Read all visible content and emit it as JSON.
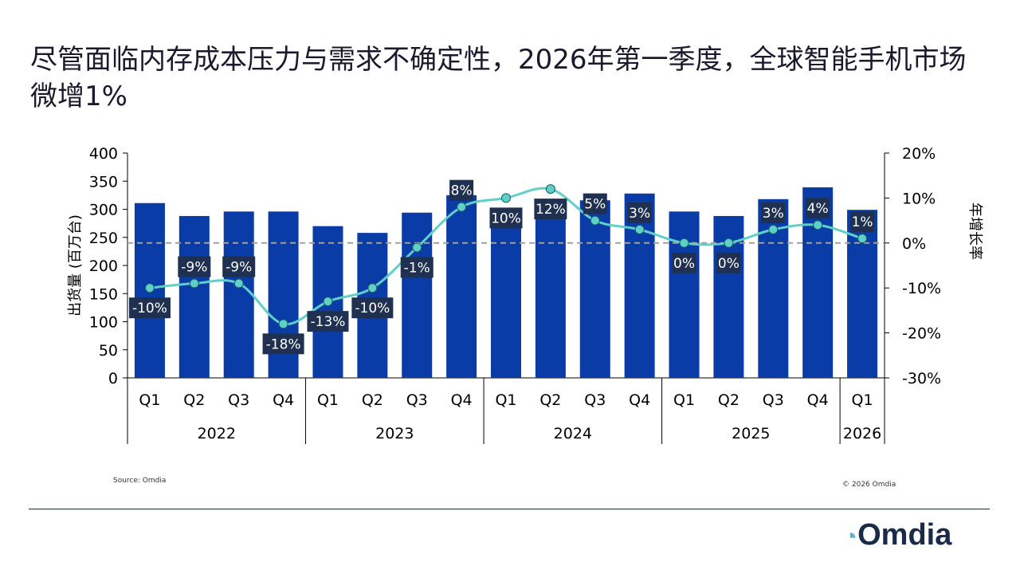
{
  "title": "尽管面临内存成本压力与需求不确定性，2026年第一季度，全球智能手机市场微增1%",
  "source": "Source: Omdia",
  "copyright": "© 2026 Omdia",
  "logo_text": "Omdia",
  "chart_data": {
    "type": "bar+line",
    "categories": [
      "Q1",
      "Q2",
      "Q3",
      "Q4",
      "Q1",
      "Q2",
      "Q3",
      "Q4",
      "Q1",
      "Q2",
      "Q3",
      "Q4",
      "Q1",
      "Q2",
      "Q3",
      "Q4",
      "Q1"
    ],
    "years": [
      {
        "label": "2022",
        "count": 4
      },
      {
        "label": "2023",
        "count": 4
      },
      {
        "label": "2024",
        "count": 4
      },
      {
        "label": "2025",
        "count": 4
      },
      {
        "label": "2026",
        "count": 1
      }
    ],
    "shipments": [
      311,
      288,
      296,
      296,
      270,
      258,
      294,
      325,
      296,
      289,
      316,
      328,
      296,
      288,
      318,
      339,
      299
    ],
    "growth": [
      -10,
      -9,
      -9,
      -18,
      -13,
      -10,
      -1,
      8,
      10,
      12,
      5,
      3,
      0,
      0,
      3,
      4,
      1
    ],
    "growth_labels": [
      "-10%",
      "-9%",
      "-9%",
      "-18%",
      "-13%",
      "-10%",
      "-1%",
      "8%",
      "10%",
      "12%",
      "5%",
      "3%",
      "0%",
      "0%",
      "3%",
      "4%",
      "1%"
    ],
    "ylabel": "出货量 (百万台)",
    "y2label": "年增长率",
    "ylim": [
      0,
      400
    ],
    "yticks": [
      0,
      50,
      100,
      150,
      200,
      250,
      300,
      350,
      400
    ],
    "y2lim": [
      -30,
      20
    ],
    "y2ticks": [
      "20%",
      "10%",
      "0%",
      "-10%",
      "-20%",
      "-30%"
    ],
    "colors": {
      "bar": "#0a3ca8",
      "line": "#5fd0c8",
      "label_bg": "#1f3050",
      "zero_line": "#a0a0a0"
    }
  }
}
